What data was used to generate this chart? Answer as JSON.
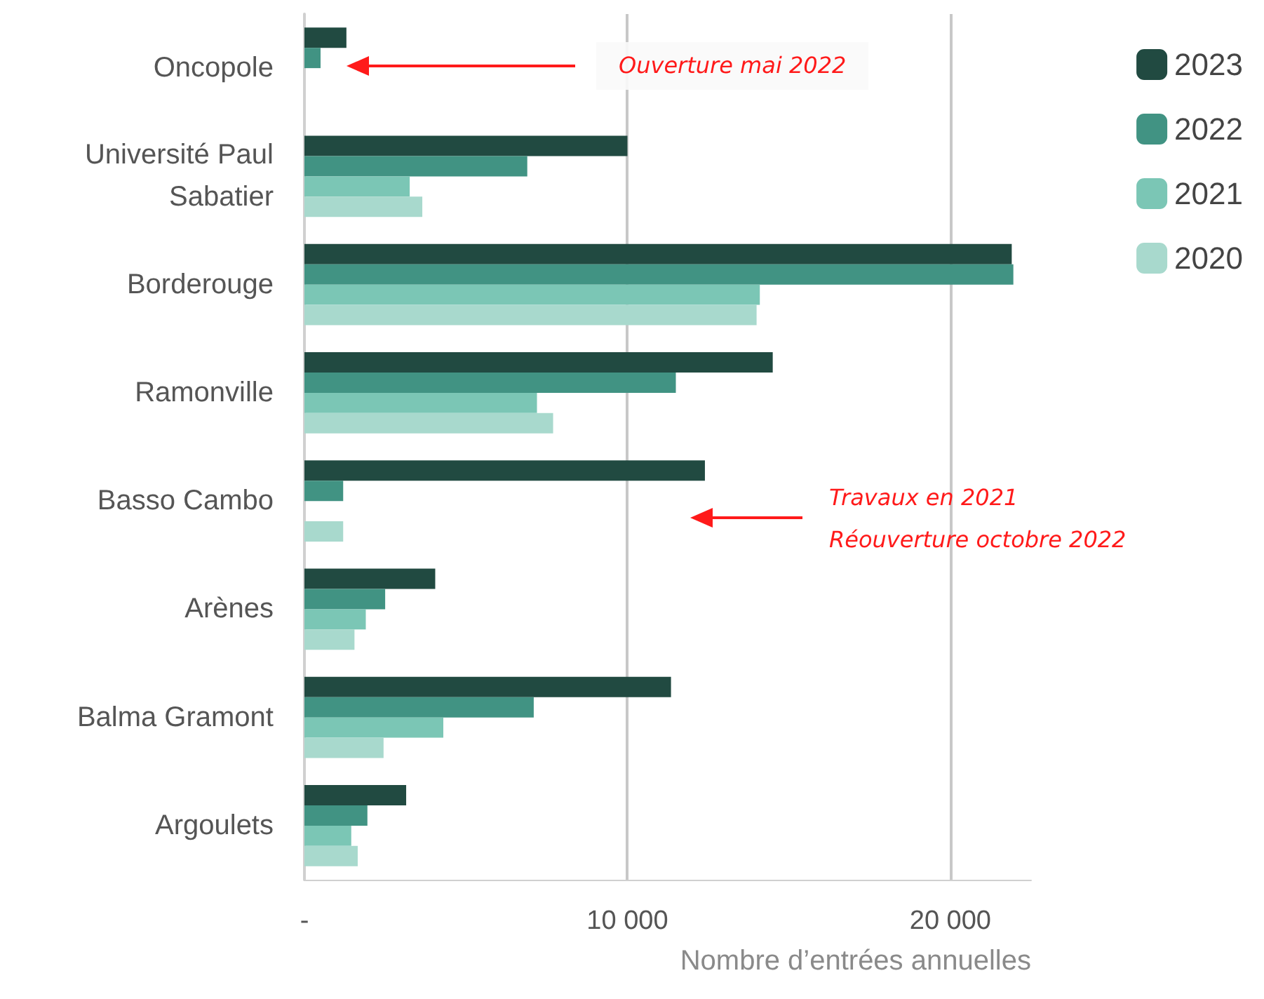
{
  "chart_data": {
    "type": "bar",
    "orientation": "horizontal",
    "xlabel": "Nombre d’entrées annuelles",
    "categories": [
      "Oncopole",
      "Université Paul\nSabatier",
      "Borderouge",
      "Ramonville",
      "Basso Cambo",
      "Arènes",
      "Balma Gramont",
      "Argoulets"
    ],
    "series": [
      {
        "name": "2023",
        "color": "#214a41",
        "values": [
          1300,
          10000,
          21900,
          14500,
          12400,
          4050,
          11350,
          3150
        ]
      },
      {
        "name": "2022",
        "color": "#419383",
        "values": [
          500,
          6900,
          21950,
          11500,
          1200,
          2500,
          7100,
          1950
        ]
      },
      {
        "name": "2021",
        "color": "#7bc6b5",
        "values": [
          null,
          3260,
          14100,
          7200,
          null,
          1900,
          4300,
          1450
        ]
      },
      {
        "name": "2020",
        "color": "#a8d9cd",
        "values": [
          null,
          3650,
          14000,
          7700,
          1200,
          1550,
          2450,
          1650
        ]
      }
    ],
    "xlim": [
      0,
      22500
    ],
    "xticks": [
      {
        "value": 0,
        "label": "-"
      },
      {
        "value": 10000,
        "label": "10 000"
      },
      {
        "value": 20000,
        "label": "20 000"
      }
    ],
    "grid": "x",
    "legend": "top right",
    "annotations": [
      "Ouverture mai 2022",
      "Travaux en 2021\nRéouverture octobre 2022"
    ]
  }
}
